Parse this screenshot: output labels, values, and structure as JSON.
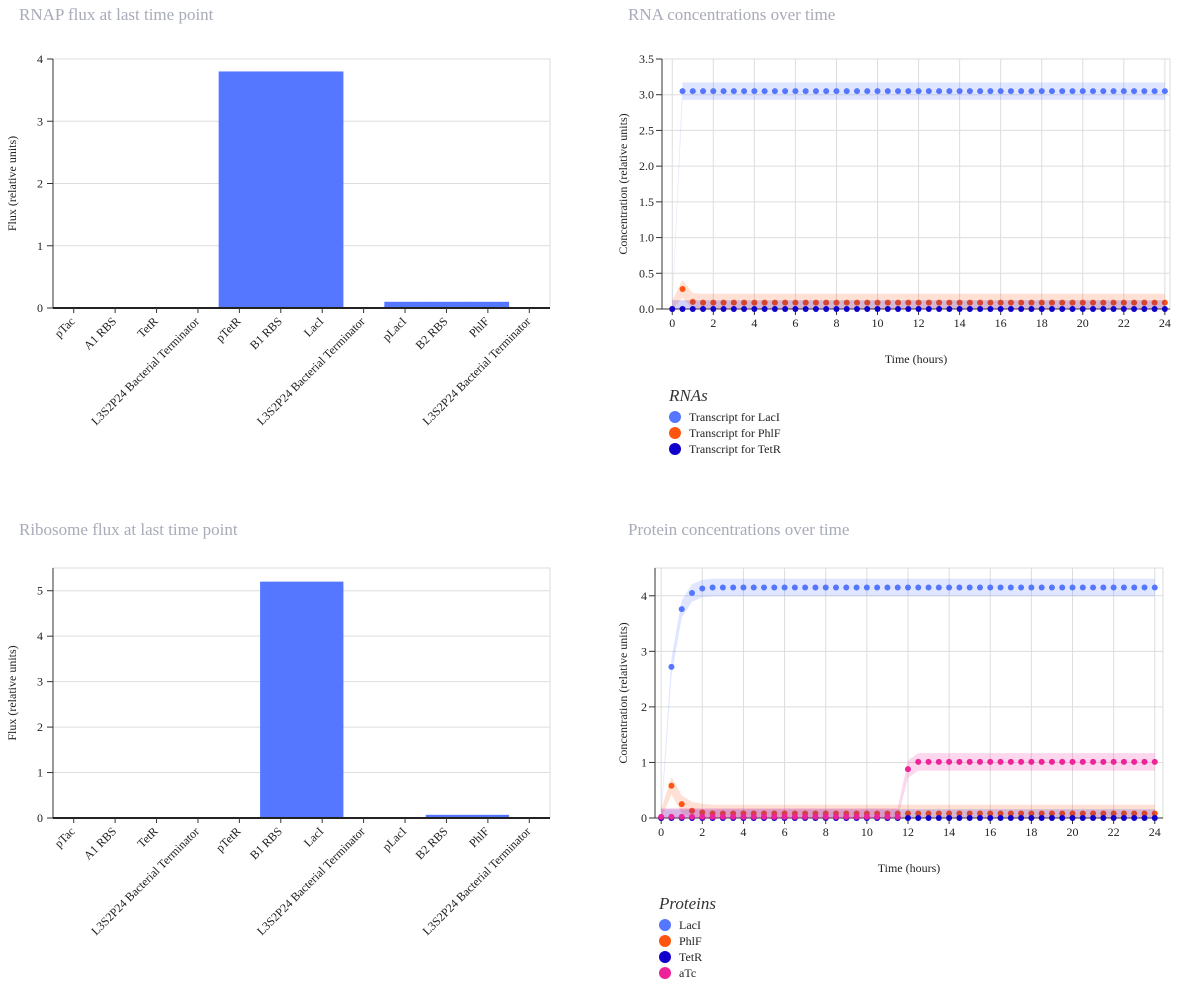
{
  "charts": [
    {
      "title": "RNAP flux at last time point",
      "chart_data": {
        "type": "bar",
        "ylabel": "Flux (relative units)",
        "ylim": [
          0,
          4
        ],
        "yticks": [
          0,
          1,
          2,
          3,
          4
        ],
        "categories": [
          "pTac",
          "A1 RBS",
          "TetR",
          "L3S2P24 Bacterial Terminator",
          "pTetR",
          "B1 RBS",
          "LacI",
          "L3S2P24 Bacterial Terminator",
          "pLacI",
          "B2 RBS",
          "PhlF",
          "L3S2P24 Bacterial Terminator"
        ],
        "values": [
          0,
          0,
          0,
          0,
          3.8,
          3.8,
          3.8,
          0,
          0.1,
          0.1,
          0.1,
          0
        ],
        "color": "#5577ff"
      }
    },
    {
      "title": "Ribosome flux at last time point",
      "chart_data": {
        "type": "bar",
        "ylabel": "Flux (relative units)",
        "ylim": [
          0,
          5.5
        ],
        "yticks": [
          0,
          1,
          2,
          3,
          4,
          5
        ],
        "categories": [
          "pTac",
          "A1 RBS",
          "TetR",
          "L3S2P24 Bacterial Terminator",
          "pTetR",
          "B1 RBS",
          "LacI",
          "L3S2P24 Bacterial Terminator",
          "pLacI",
          "B2 RBS",
          "PhlF",
          "L3S2P24 Bacterial Terminator"
        ],
        "values": [
          0,
          0,
          0,
          0,
          0,
          5.2,
          5.2,
          0,
          0,
          0.07,
          0.07,
          0
        ],
        "color": "#5577ff"
      }
    },
    {
      "title": "RNA concentrations over time",
      "legend_title": "RNAs",
      "chart_data": {
        "type": "line",
        "xlabel": "Time (hours)",
        "ylabel": "Concentration (relative units)",
        "xlim": [
          -0.5,
          24.25
        ],
        "ylim": [
          0,
          3.5
        ],
        "xticks": [
          0,
          2,
          4,
          6,
          8,
          10,
          12,
          14,
          16,
          18,
          20,
          22,
          24
        ],
        "yticks": [
          "0.0",
          "0.5",
          "1.0",
          "1.5",
          "2.0",
          "2.5",
          "3.0",
          "3.5"
        ],
        "series": [
          {
            "name": "Transcript for LacI",
            "color": "#5577ff",
            "points": [
              [
                0,
                0
              ],
              [
                0.5,
                3.05
              ],
              [
                1,
                3.05
              ],
              [
                24,
                3.05
              ]
            ]
          },
          {
            "name": "Transcript for PhlF",
            "color": "#ff5511",
            "points": [
              [
                0,
                0
              ],
              [
                0.5,
                0.28
              ],
              [
                1,
                0.1
              ],
              [
                1.5,
                0.09
              ],
              [
                24,
                0.09
              ]
            ]
          },
          {
            "name": "Transcript for TetR",
            "color": "#1100cc",
            "points": [
              [
                0,
                0
              ],
              [
                24,
                0
              ]
            ]
          }
        ]
      }
    },
    {
      "title": "Protein concentrations over time",
      "legend_title": "Proteins",
      "chart_data": {
        "type": "line",
        "xlabel": "Time (hours)",
        "ylabel": "Concentration (relative units)",
        "xlim": [
          -0.3,
          24.4
        ],
        "ylim": [
          0,
          4.5
        ],
        "xticks": [
          0,
          2,
          4,
          6,
          8,
          10,
          12,
          14,
          16,
          18,
          20,
          22,
          24
        ],
        "yticks": [
          0,
          1,
          2,
          3,
          4
        ],
        "series": [
          {
            "name": "LacI",
            "color": "#5577ff",
            "points": [
              [
                0,
                0
              ],
              [
                0.5,
                2.72
              ],
              [
                1,
                3.76
              ],
              [
                1.5,
                4.05
              ],
              [
                2,
                4.13
              ],
              [
                2.5,
                4.15
              ],
              [
                24,
                4.15
              ]
            ]
          },
          {
            "name": "PhlF",
            "color": "#ff5511",
            "points": [
              [
                0,
                0
              ],
              [
                0.5,
                0.58
              ],
              [
                1,
                0.25
              ],
              [
                1.5,
                0.13
              ],
              [
                2,
                0.1
              ],
              [
                2.5,
                0.08
              ],
              [
                24,
                0.08
              ]
            ]
          },
          {
            "name": "TetR",
            "color": "#1100cc",
            "points": [
              [
                0,
                0
              ],
              [
                24,
                0
              ]
            ]
          },
          {
            "name": "aTc",
            "color": "#ee2299",
            "points": [
              [
                0,
                0.02
              ],
              [
                11.5,
                0.02
              ],
              [
                12,
                0.88
              ],
              [
                12.5,
                1.01
              ],
              [
                24,
                1.01
              ]
            ]
          }
        ]
      }
    }
  ]
}
